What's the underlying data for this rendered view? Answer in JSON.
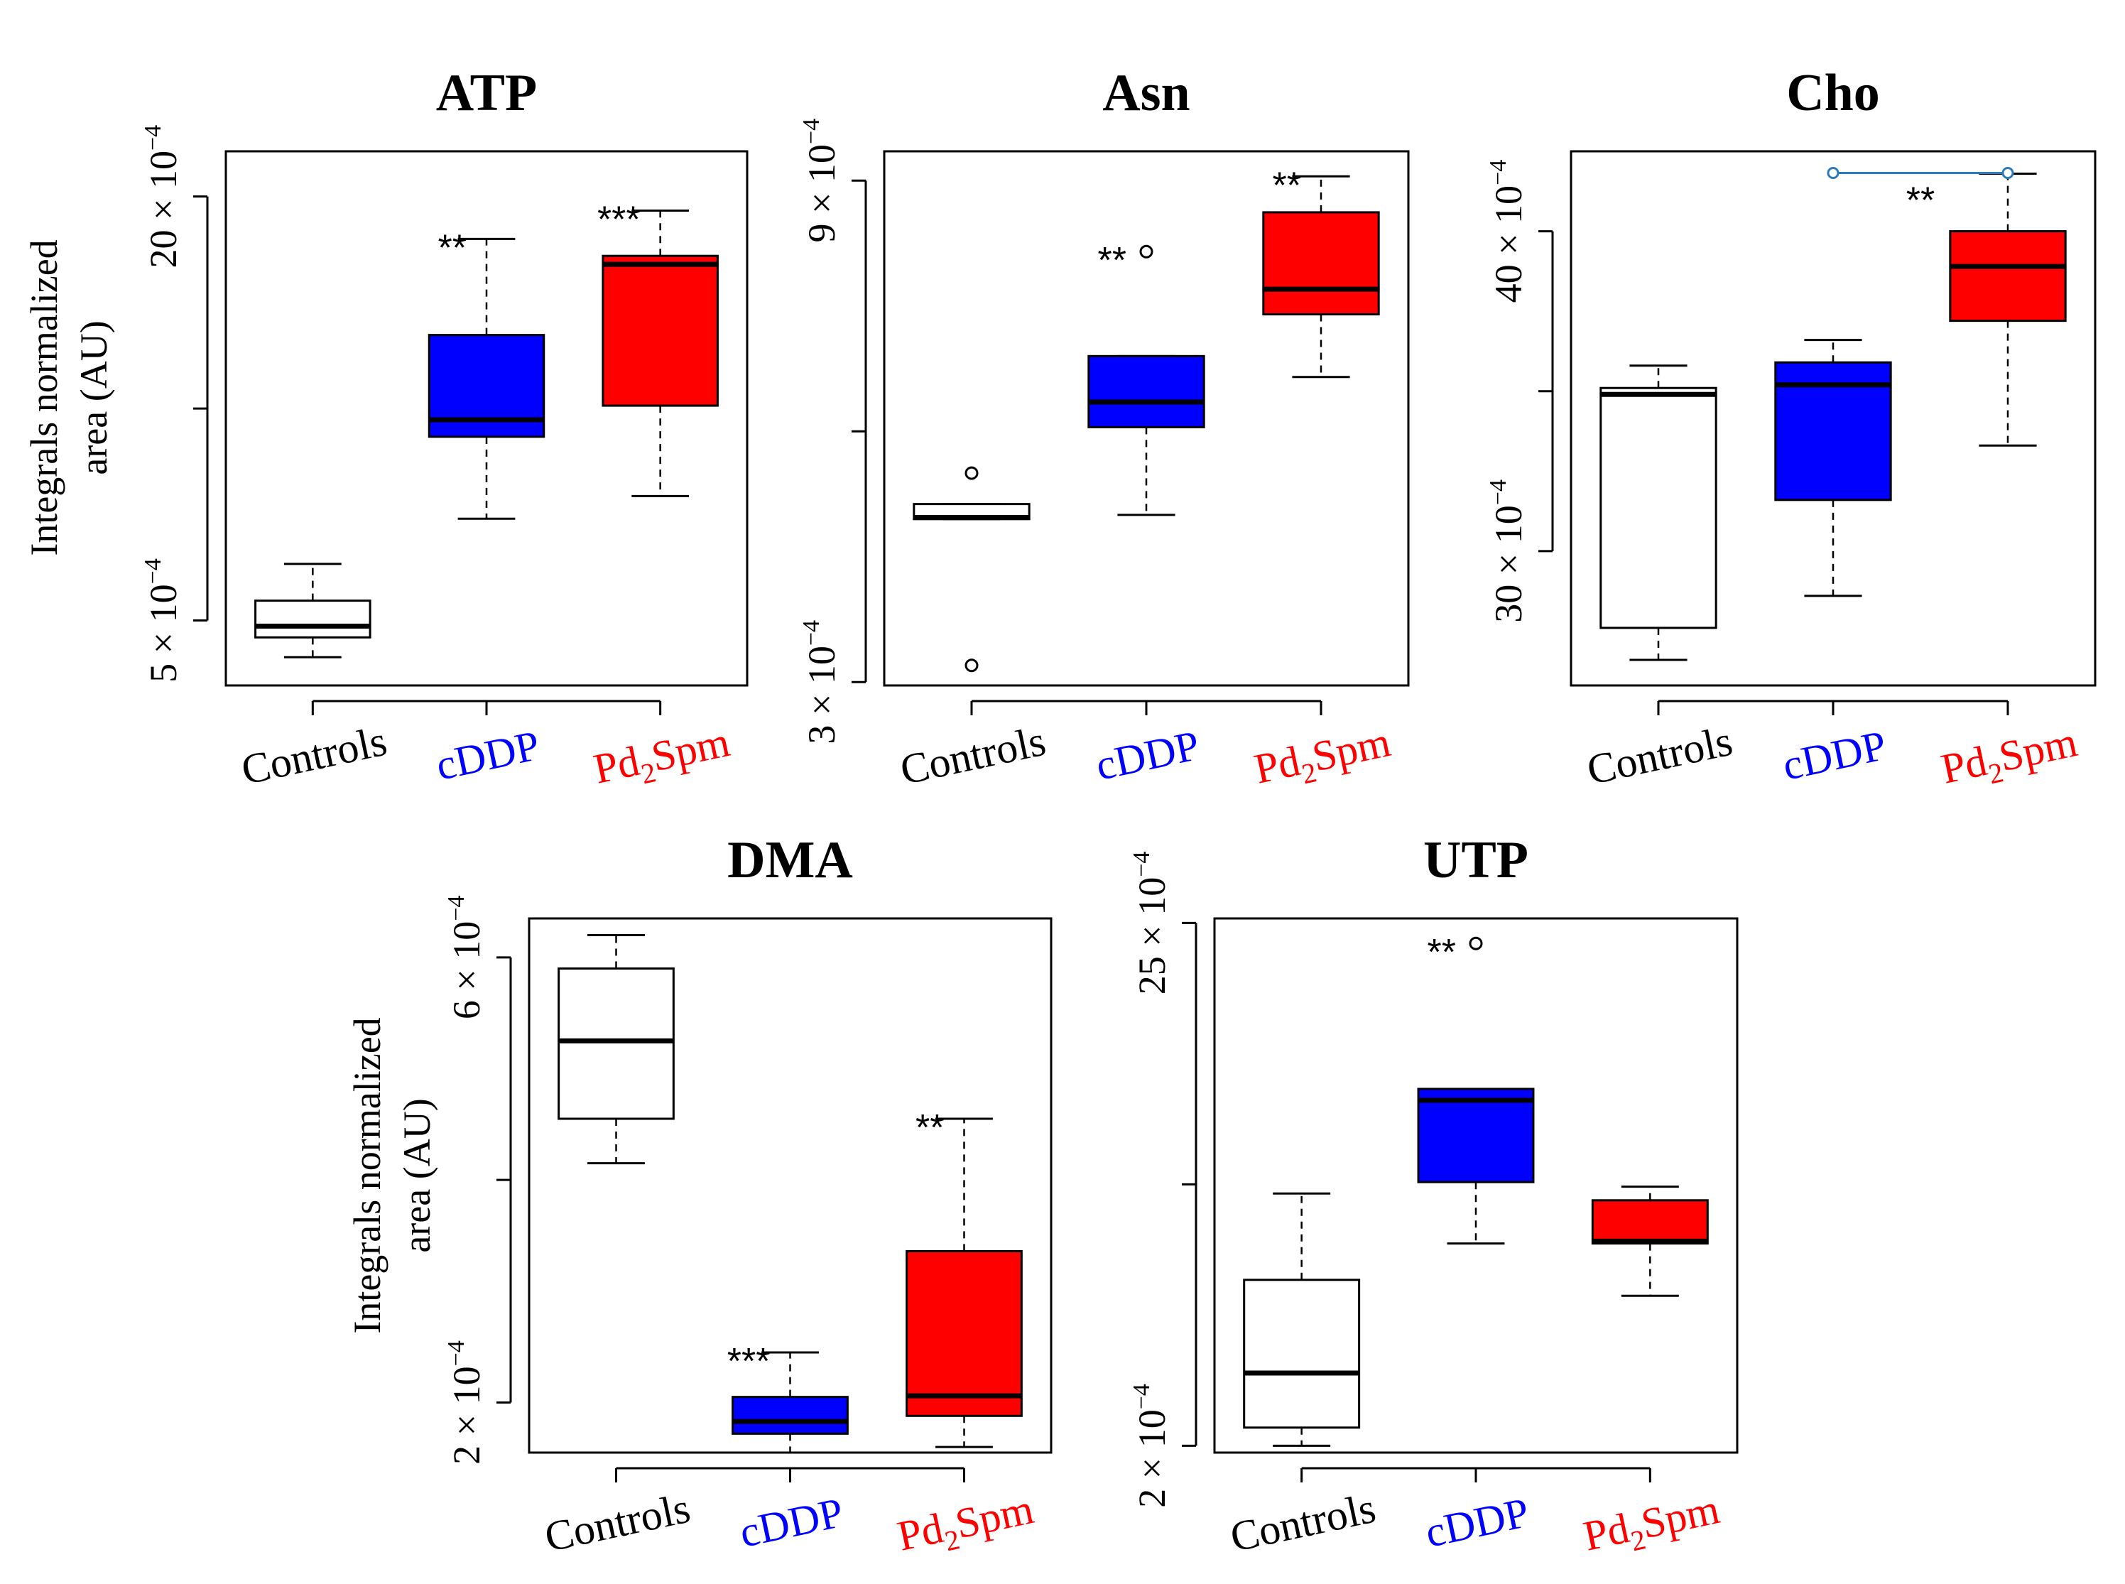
{
  "figure": {
    "ylabel_line1": "Integrals normalized",
    "ylabel_line2": "area (AU)"
  },
  "colors": {
    "Controls": "#ffffff",
    "cDDP": "#0000ff",
    "Pd2Spm": "#ff0000",
    "label_Controls": "#000000",
    "label_cDDP": "#0000ff",
    "label_Pd2Spm": "#ff0000",
    "bracket": "#2b7bba"
  },
  "chart_data": [
    {
      "type": "boxplot",
      "title": "ATP",
      "categories": [
        "Controls",
        "cDDP",
        "Pd2Spm"
      ],
      "category_labels": [
        {
          "main": "Controls"
        },
        {
          "main": "cDDP"
        },
        {
          "main": "Pd",
          "sub": "2",
          "rest": "Spm"
        }
      ],
      "ylabel": "Integrals normalized area (AU)",
      "ylim": [
        2.7,
        21.6
      ],
      "yticks": [
        {
          "value": 5,
          "mant": "5",
          "exp": "−4",
          "labeled": true
        },
        {
          "value": 12.5,
          "labeled": false
        },
        {
          "value": 20,
          "mant": "20",
          "exp": "−4",
          "labeled": true
        }
      ],
      "tick_suffix": " × 10",
      "exponent_scale": "×10^-4",
      "boxes": [
        {
          "name": "Controls",
          "whisker_low": 3.7,
          "q1": 4.4,
          "median": 4.8,
          "q3": 5.7,
          "whisker_high": 7.0,
          "outliers": []
        },
        {
          "name": "cDDP",
          "whisker_low": 8.6,
          "q1": 11.5,
          "median": 12.1,
          "q3": 15.1,
          "whisker_high": 18.5,
          "outliers": []
        },
        {
          "name": "Pd2Spm",
          "whisker_low": 9.4,
          "q1": 12.6,
          "median": 17.6,
          "q3": 17.9,
          "whisker_high": 19.5,
          "outliers": []
        }
      ],
      "annotations": [
        {
          "category": "cDDP",
          "label": "**",
          "value": 18.5
        },
        {
          "category": "Pd2Spm",
          "label": "***",
          "value": 19.5
        }
      ]
    },
    {
      "type": "boxplot",
      "title": "Asn",
      "categories": [
        "Controls",
        "cDDP",
        "Pd2Spm"
      ],
      "category_labels": [
        {
          "main": "Controls"
        },
        {
          "main": "cDDP"
        },
        {
          "main": "Pd",
          "sub": "2",
          "rest": "Spm"
        }
      ],
      "ylim": [
        2.96,
        9.35
      ],
      "yticks": [
        {
          "value": 3,
          "mant": "3",
          "exp": "−4",
          "labeled": true
        },
        {
          "value": 6,
          "labeled": false
        },
        {
          "value": 9,
          "mant": "9",
          "exp": "−4",
          "labeled": true
        }
      ],
      "tick_suffix": " × 10",
      "exponent_scale": "×10^-4",
      "boxes": [
        {
          "name": "Controls",
          "whisker_low": 4.95,
          "q1": 4.95,
          "median": 4.97,
          "q3": 5.13,
          "whisker_high": 5.13,
          "outliers": [
            3.2,
            5.5
          ]
        },
        {
          "name": "cDDP",
          "whisker_low": 5.0,
          "q1": 6.05,
          "median": 6.35,
          "q3": 6.9,
          "whisker_high": 6.9,
          "outliers": [
            8.15
          ]
        },
        {
          "name": "Pd2Spm",
          "whisker_low": 6.65,
          "q1": 7.4,
          "median": 7.7,
          "q3": 8.62,
          "whisker_high": 9.05,
          "outliers": []
        }
      ],
      "annotations": [
        {
          "category": "cDDP",
          "label": "**",
          "value": 8.15
        },
        {
          "category": "Pd2Spm",
          "label": "**",
          "value": 9.05
        }
      ]
    },
    {
      "type": "boxplot",
      "title": "Cho",
      "categories": [
        "Controls",
        "cDDP",
        "Pd2Spm"
      ],
      "category_labels": [
        {
          "main": "Controls"
        },
        {
          "main": "cDDP"
        },
        {
          "main": "Pd",
          "sub": "2",
          "rest": "Spm"
        }
      ],
      "ylim": [
        25.8,
        42.5
      ],
      "yticks": [
        {
          "value": 30,
          "mant": "30",
          "exp": "−4",
          "labeled": true
        },
        {
          "value": 35,
          "labeled": false
        },
        {
          "value": 40,
          "mant": "40",
          "exp": "−4",
          "labeled": true
        }
      ],
      "tick_suffix": " × 10",
      "exponent_scale": "×10^-4",
      "boxes": [
        {
          "name": "Controls",
          "whisker_low": 26.6,
          "q1": 27.6,
          "median": 34.9,
          "q3": 35.1,
          "whisker_high": 35.8,
          "outliers": []
        },
        {
          "name": "cDDP",
          "whisker_low": 28.6,
          "q1": 31.6,
          "median": 35.2,
          "q3": 35.9,
          "whisker_high": 36.6,
          "outliers": []
        },
        {
          "name": "Pd2Spm",
          "whisker_low": 33.3,
          "q1": 37.2,
          "median": 38.9,
          "q3": 40.0,
          "whisker_high": 41.8,
          "outliers": []
        }
      ],
      "annotations": [
        {
          "category": "cDDP",
          "label": "**",
          "value": 41.8,
          "bracket_to": "Pd2Spm"
        }
      ]
    },
    {
      "type": "boxplot",
      "title": "DMA",
      "categories": [
        "Controls",
        "cDDP",
        "Pd2Spm"
      ],
      "category_labels": [
        {
          "main": "Controls"
        },
        {
          "main": "cDDP"
        },
        {
          "main": "Pd",
          "sub": "2",
          "rest": "Spm"
        }
      ],
      "ylabel": "Integrals normalized area (AU)",
      "ylim": [
        1.55,
        6.35
      ],
      "yticks": [
        {
          "value": 2,
          "mant": "2",
          "exp": "−4",
          "labeled": true
        },
        {
          "value": 4,
          "labeled": false
        },
        {
          "value": 6,
          "mant": "6",
          "exp": "−4",
          "labeled": true
        }
      ],
      "tick_suffix": " × 10",
      "exponent_scale": "×10^-4",
      "boxes": [
        {
          "name": "Controls",
          "whisker_low": 4.15,
          "q1": 4.55,
          "median": 5.25,
          "q3": 5.9,
          "whisker_high": 6.2,
          "outliers": []
        },
        {
          "name": "cDDP",
          "whisker_low": 1.55,
          "q1": 1.72,
          "median": 1.83,
          "q3": 2.05,
          "whisker_high": 2.45,
          "outliers": []
        },
        {
          "name": "Pd2Spm",
          "whisker_low": 1.6,
          "q1": 1.88,
          "median": 2.06,
          "q3": 3.36,
          "whisker_high": 4.55,
          "outliers": []
        }
      ],
      "annotations": [
        {
          "category": "cDDP",
          "label": "***",
          "value": 2.45
        },
        {
          "category": "Pd2Spm",
          "label": "**",
          "value": 4.55
        }
      ]
    },
    {
      "type": "boxplot",
      "title": "UTP",
      "categories": [
        "Controls",
        "cDDP",
        "Pd2Spm"
      ],
      "category_labels": [
        {
          "main": "Controls"
        },
        {
          "main": "cDDP"
        },
        {
          "main": "Pd",
          "sub": "2",
          "rest": "Spm"
        }
      ],
      "ylim": [
        1.7,
        25.2
      ],
      "yticks": [
        {
          "value": 2,
          "mant": "2",
          "exp": "−4",
          "labeled": true
        },
        {
          "value": 13.5,
          "labeled": false
        },
        {
          "value": 25,
          "mant": "25",
          "exp": "−4",
          "labeled": true
        }
      ],
      "tick_suffix": " × 10",
      "exponent_scale": "×10^-4",
      "boxes": [
        {
          "name": "Controls",
          "whisker_low": 2.0,
          "q1": 2.8,
          "median": 5.2,
          "q3": 9.3,
          "whisker_high": 13.1,
          "outliers": []
        },
        {
          "name": "cDDP",
          "whisker_low": 10.9,
          "q1": 13.6,
          "median": 17.2,
          "q3": 17.7,
          "whisker_high": 17.7,
          "outliers": [
            24.1
          ]
        },
        {
          "name": "Pd2Spm",
          "whisker_low": 8.6,
          "q1": 10.9,
          "median": 11.0,
          "q3": 12.8,
          "whisker_high": 13.4,
          "outliers": []
        }
      ],
      "annotations": [
        {
          "category": "cDDP",
          "label": "**",
          "value": 24.1
        }
      ]
    }
  ]
}
